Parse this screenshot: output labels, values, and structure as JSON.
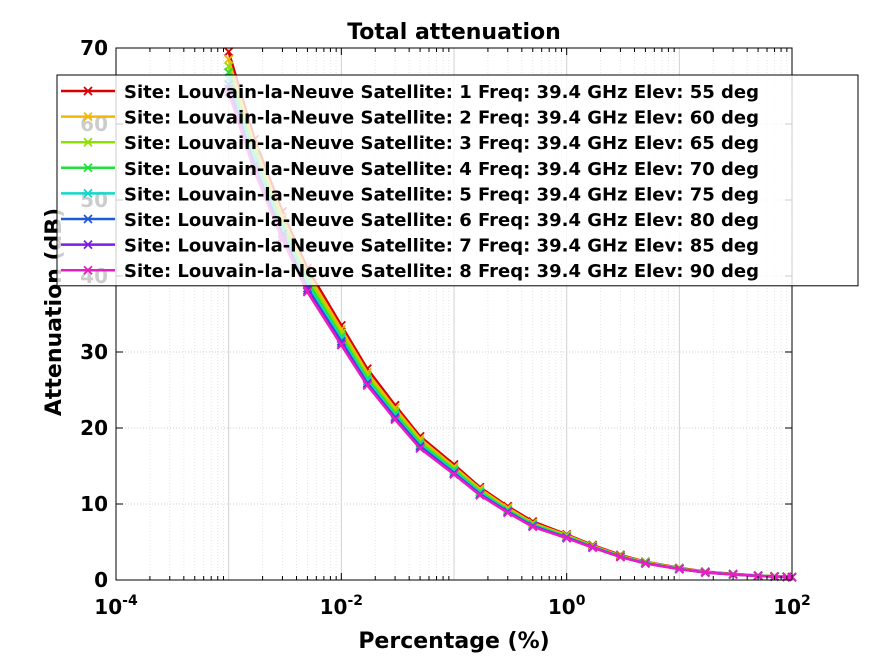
{
  "chart_data": {
    "type": "line",
    "title": "Total attenuation",
    "xlabel": "Percentage (%)",
    "ylabel": "Attenuation (dB)",
    "xscale": "log",
    "xlim": [
      0.0001,
      100
    ],
    "ylim": [
      0,
      70
    ],
    "xticks": [
      {
        "base": "10",
        "exp": "-4"
      },
      {
        "base": "10",
        "exp": "-2"
      },
      {
        "base": "10",
        "exp": "0"
      },
      {
        "base": "10",
        "exp": "2"
      }
    ],
    "yticks": [
      "0",
      "10",
      "20",
      "30",
      "40",
      "50",
      "60",
      "70"
    ],
    "grid": true,
    "legend_position": "top-right",
    "x": [
      0.001,
      0.0017,
      0.003,
      0.005,
      0.01,
      0.017,
      0.03,
      0.05,
      0.1,
      0.17,
      0.3,
      0.5,
      1,
      1.7,
      3,
      5,
      10,
      17,
      30,
      50,
      70,
      90,
      100
    ],
    "series": [
      {
        "name": "Site: Louvain-la-Neuve Satellite: 1 Freq: 39.4 GHz Elev: 55 deg",
        "color": "#d90000",
        "values": [
          69.5,
          58.0,
          48.5,
          41.0,
          33.5,
          27.8,
          23.0,
          18.9,
          15.2,
          12.2,
          9.7,
          7.7,
          6.0,
          4.6,
          3.3,
          2.4,
          1.6,
          1.1,
          0.8,
          0.6,
          0.5,
          0.45,
          0.4
        ]
      },
      {
        "name": "Site: Louvain-la-Neuve Satellite: 2 Freq: 39.4 GHz Elev: 60 deg",
        "color": "#f2b705",
        "values": [
          68.5,
          57.2,
          47.8,
          40.4,
          33.0,
          27.3,
          22.6,
          18.6,
          14.9,
          12.0,
          9.5,
          7.5,
          5.9,
          4.5,
          3.2,
          2.35,
          1.55,
          1.05,
          0.78,
          0.58,
          0.48,
          0.43,
          0.4
        ]
      },
      {
        "name": "Site: Louvain-la-Neuve Satellite: 3 Freq: 39.4 GHz Elev: 65 deg",
        "color": "#8ee000",
        "values": [
          67.6,
          56.4,
          47.1,
          39.8,
          32.5,
          26.9,
          22.2,
          18.3,
          14.7,
          11.8,
          9.3,
          7.4,
          5.8,
          4.45,
          3.15,
          2.3,
          1.5,
          1.03,
          0.76,
          0.57,
          0.47,
          0.42,
          0.39
        ]
      },
      {
        "name": "Site: Louvain-la-Neuve Satellite: 4 Freq: 39.4 GHz Elev: 70 deg",
        "color": "#22e03c",
        "values": [
          66.8,
          55.7,
          46.5,
          39.3,
          32.0,
          26.5,
          21.9,
          18.0,
          14.5,
          11.6,
          9.2,
          7.3,
          5.7,
          4.4,
          3.1,
          2.25,
          1.48,
          1.01,
          0.75,
          0.56,
          0.46,
          0.41,
          0.38
        ]
      },
      {
        "name": "Site: Louvain-la-Neuve Satellite: 5 Freq: 39.4 GHz Elev: 75 deg",
        "color": "#10d8cc",
        "values": [
          66.0,
          55.1,
          46.0,
          38.8,
          31.7,
          26.2,
          21.6,
          17.8,
          14.3,
          11.5,
          9.1,
          7.2,
          5.65,
          4.35,
          3.08,
          2.22,
          1.46,
          1.0,
          0.74,
          0.55,
          0.45,
          0.4,
          0.38
        ]
      },
      {
        "name": "Site: Louvain-la-Neuve Satellite: 6 Freq: 39.4 GHz Elev: 80 deg",
        "color": "#1d5bd8",
        "values": [
          65.2,
          54.5,
          45.5,
          38.4,
          31.4,
          25.9,
          21.4,
          17.6,
          14.1,
          11.3,
          9.0,
          7.1,
          5.6,
          4.3,
          3.05,
          2.2,
          1.45,
          0.99,
          0.73,
          0.54,
          0.45,
          0.4,
          0.37
        ]
      },
      {
        "name": "Site: Louvain-la-Neuve Satellite: 7 Freq: 39.4 GHz Elev: 85 deg",
        "color": "#7b1fe0",
        "values": [
          64.6,
          54.0,
          45.1,
          38.1,
          31.1,
          25.7,
          21.2,
          17.4,
          14.0,
          11.2,
          8.9,
          7.05,
          5.55,
          4.28,
          3.03,
          2.18,
          1.44,
          0.98,
          0.72,
          0.54,
          0.44,
          0.39,
          0.37
        ]
      },
      {
        "name": "Site: Louvain-la-Neuve Satellite: 8 Freq: 39.4 GHz Elev: 90 deg",
        "color": "#e81ec4",
        "values": [
          64.2,
          53.7,
          44.8,
          37.9,
          30.9,
          25.6,
          21.1,
          17.3,
          13.9,
          11.15,
          8.85,
          7.0,
          5.5,
          4.25,
          3.02,
          2.17,
          1.43,
          0.98,
          0.72,
          0.53,
          0.44,
          0.39,
          0.36
        ]
      }
    ]
  }
}
